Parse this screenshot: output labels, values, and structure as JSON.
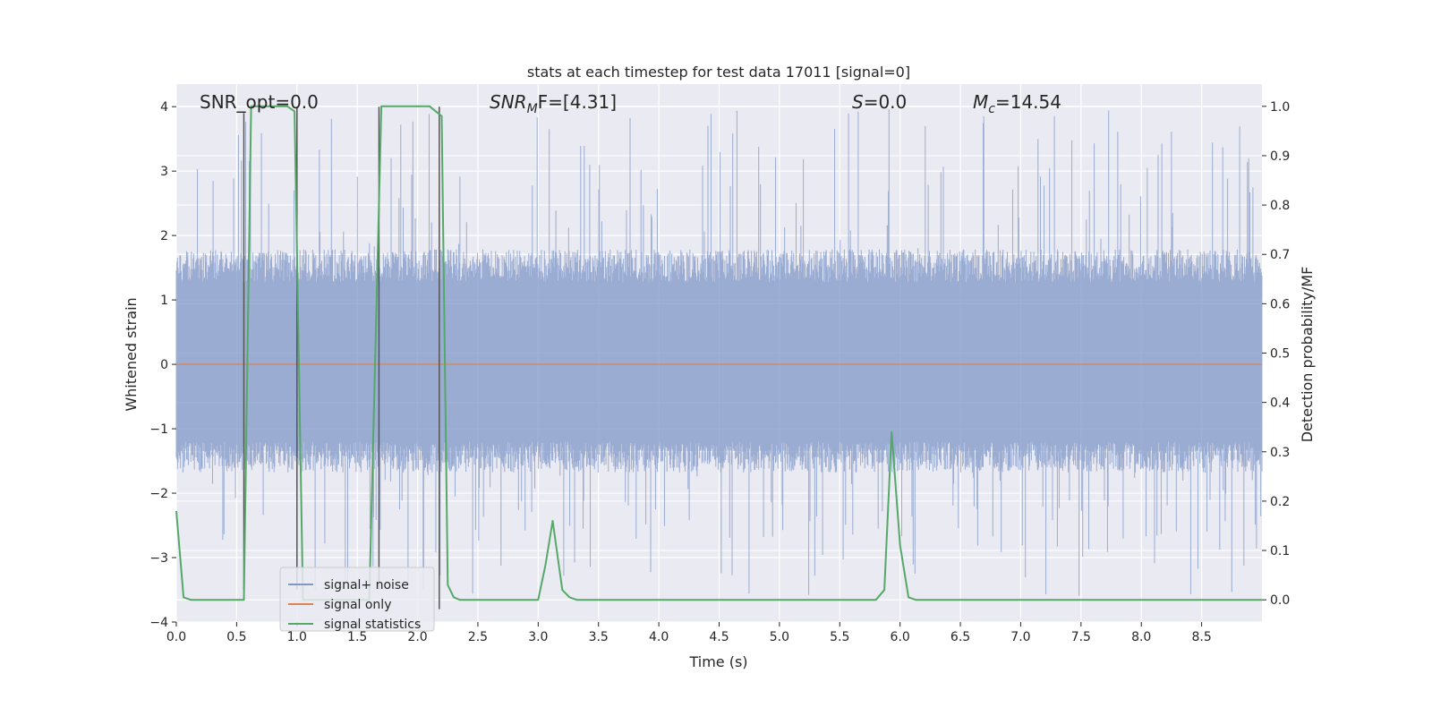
{
  "chart_data": {
    "type": "line",
    "title": "stats at each timestep for test data 17011 [signal=0]",
    "xlabel": "Time (s)",
    "ylabel": "Whitened strain",
    "ylabel_right": "Detection probability/MF",
    "xlim": [
      0.0,
      9.0
    ],
    "ylim": [
      -4.0,
      4.35
    ],
    "ylim_right": [
      -0.045,
      1.045
    ],
    "x_ticks": [
      0.0,
      0.5,
      1.0,
      1.5,
      2.0,
      2.5,
      3.0,
      3.5,
      4.0,
      4.5,
      5.0,
      5.5,
      6.0,
      6.5,
      7.0,
      7.5,
      8.0,
      8.5
    ],
    "x_tick_labels": [
      "0.0",
      "0.5",
      "1.0",
      "1.5",
      "2.0",
      "2.5",
      "3.0",
      "3.5",
      "4.0",
      "4.5",
      "5.0",
      "5.5",
      "6.0",
      "6.5",
      "7.0",
      "7.5",
      "8.0",
      "8.5"
    ],
    "y_ticks": [
      -4,
      -3,
      -2,
      -1,
      0,
      1,
      2,
      3,
      4
    ],
    "y_tick_labels": [
      "−4",
      "−3",
      "−2",
      "−1",
      "0",
      "1",
      "2",
      "3",
      "4"
    ],
    "y_right_ticks": [
      0.0,
      0.1,
      0.2,
      0.3,
      0.4,
      0.5,
      0.6,
      0.7,
      0.8,
      0.9,
      1.0
    ],
    "y_right_tick_labels": [
      "0.0",
      "0.1",
      "0.2",
      "0.3",
      "0.4",
      "0.5",
      "0.6",
      "0.7",
      "0.8",
      "0.9",
      "1.0"
    ],
    "grid": true,
    "legend_position": "lower-left",
    "annotations": [
      {
        "prefix": "SNR_opt=0.0",
        "sub": "",
        "suffix": "",
        "italic": false
      },
      {
        "prefix": "SNR",
        "sub": "M",
        "suffix": "F=[4.31]",
        "italic": true
      },
      {
        "prefix": "S",
        "sub": "",
        "suffix": "=0.0",
        "italic": true
      },
      {
        "prefix": "M",
        "sub": "c",
        "suffix": "=14.54",
        "italic": true
      }
    ],
    "series": [
      {
        "name": "signal+ noise",
        "axis": "left",
        "color": "#7f97c7",
        "style": "dense noise, mostly between -1.6 and 1.6, peaks up to about 4 and down to about -3.6",
        "envelope": {
          "typical_low": -1.6,
          "typical_high": 1.7,
          "max": 4.0,
          "min": -3.6
        }
      },
      {
        "name": "signal only",
        "axis": "left",
        "color": "#dd8452",
        "x": [
          0.0,
          9.0
        ],
        "y": [
          0.0,
          0.0
        ]
      },
      {
        "name": "signal statistics",
        "axis": "right",
        "color": "#55a868",
        "x": [
          0.0,
          0.06,
          0.12,
          0.2,
          0.3,
          0.4,
          0.5,
          0.56,
          0.62,
          0.68,
          0.8,
          0.92,
          0.98,
          1.05,
          1.1,
          1.15,
          1.5,
          1.6,
          1.7,
          1.76,
          1.85,
          2.0,
          2.1,
          2.15,
          2.2,
          2.25,
          2.3,
          2.35,
          2.5,
          3.0,
          3.06,
          3.12,
          3.2,
          3.26,
          3.32,
          3.4,
          4.0,
          5.0,
          5.8,
          5.87,
          5.93,
          6.0,
          6.07,
          6.13,
          6.2,
          7.0,
          8.0,
          9.0
        ],
        "y": [
          0.18,
          0.005,
          0.0,
          0.0,
          0.0,
          0.0,
          0.0,
          0.0,
          1.0,
          1.0,
          1.0,
          1.0,
          0.99,
          0.0,
          0.0,
          0.0,
          0.0,
          0.0,
          1.0,
          1.0,
          1.0,
          1.0,
          1.0,
          0.99,
          0.98,
          0.03,
          0.005,
          0.0,
          0.0,
          0.0,
          0.07,
          0.16,
          0.02,
          0.005,
          0.0,
          0.0,
          0.0,
          0.0,
          0.0,
          0.02,
          0.34,
          0.11,
          0.005,
          0.0,
          0.0,
          0.0,
          0.0,
          0.0
        ]
      }
    ],
    "markers": {
      "style": "vertical dark lines",
      "color": "#555555",
      "x": [
        0.56,
        1.0,
        1.68,
        2.18
      ],
      "y_top": [
        3.9,
        4.0,
        4.0,
        4.0
      ],
      "y_bottom": [
        -3.5,
        -3.5,
        -3.5,
        -3.8
      ]
    }
  }
}
